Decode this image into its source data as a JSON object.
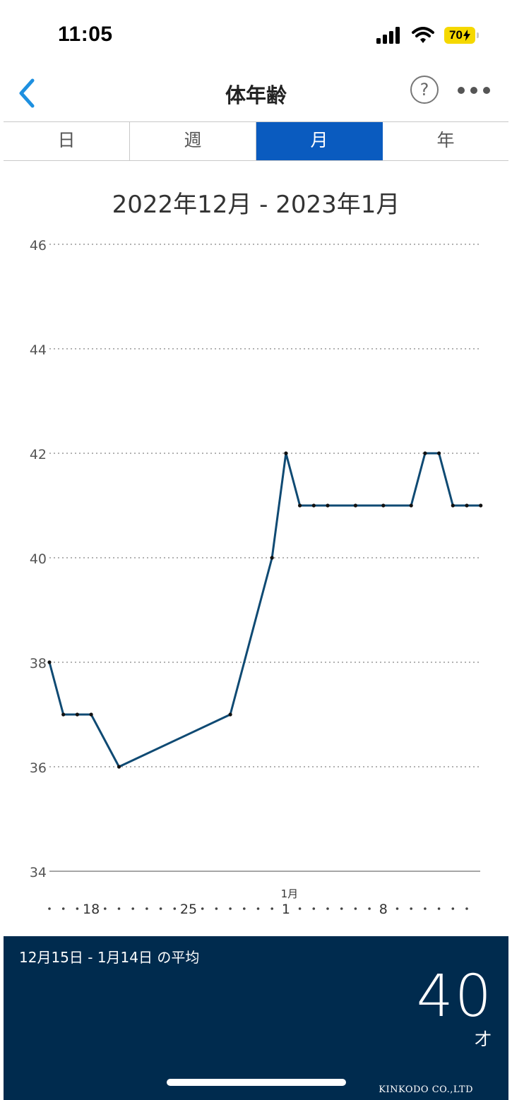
{
  "status_bar": {
    "time": "11:05",
    "battery": "70"
  },
  "nav": {
    "title": "体年齢",
    "help_label": "?"
  },
  "tabs": [
    {
      "label": "日",
      "active": false
    },
    {
      "label": "週",
      "active": false
    },
    {
      "label": "月",
      "active": true
    },
    {
      "label": "年",
      "active": false
    }
  ],
  "range_title": "2022年12月 - 2023年1月",
  "chart_data": {
    "type": "line",
    "ylim": [
      34,
      46
    ],
    "y_ticks": [
      34,
      36,
      38,
      40,
      42,
      44,
      46
    ],
    "x_tick_labels": [
      {
        "day": 18,
        "label": "18"
      },
      {
        "day": 25,
        "label": "25"
      },
      {
        "day": 32,
        "label": "1",
        "month_label": "1月"
      },
      {
        "day": 39,
        "label": "8"
      }
    ],
    "x_range": [
      15,
      45
    ],
    "series": [
      {
        "color": "#0f4a73",
        "points": [
          {
            "date": "12/15",
            "day": 15,
            "value": 38
          },
          {
            "date": "12/16",
            "day": 16,
            "value": 37
          },
          {
            "date": "12/17",
            "day": 17,
            "value": 37
          },
          {
            "date": "12/18",
            "day": 18,
            "value": 37
          },
          {
            "date": "12/20",
            "day": 20,
            "value": 36
          },
          {
            "date": "12/28",
            "day": 28,
            "value": 37
          },
          {
            "date": "12/31",
            "day": 31,
            "value": 40
          },
          {
            "date": "1/1",
            "day": 32,
            "value": 42
          },
          {
            "date": "1/2",
            "day": 33,
            "value": 41
          },
          {
            "date": "1/3",
            "day": 34,
            "value": 41
          },
          {
            "date": "1/4",
            "day": 35,
            "value": 41
          },
          {
            "date": "1/6",
            "day": 37,
            "value": 41
          },
          {
            "date": "1/8",
            "day": 39,
            "value": 41
          },
          {
            "date": "1/10",
            "day": 41,
            "value": 41
          },
          {
            "date": "1/11",
            "day": 42,
            "value": 42
          },
          {
            "date": "1/12",
            "day": 43,
            "value": 42
          },
          {
            "date": "1/13",
            "day": 44,
            "value": 41
          },
          {
            "date": "1/14",
            "day": 45,
            "value": 41
          },
          {
            "date": "1/15",
            "day": 46,
            "value": 41
          }
        ]
      }
    ]
  },
  "summary": {
    "label": "12月15日 - 1月14日 の平均",
    "value": "40",
    "unit": "才"
  },
  "footer": {
    "copyright": "KINKODO CO.,LTD"
  }
}
